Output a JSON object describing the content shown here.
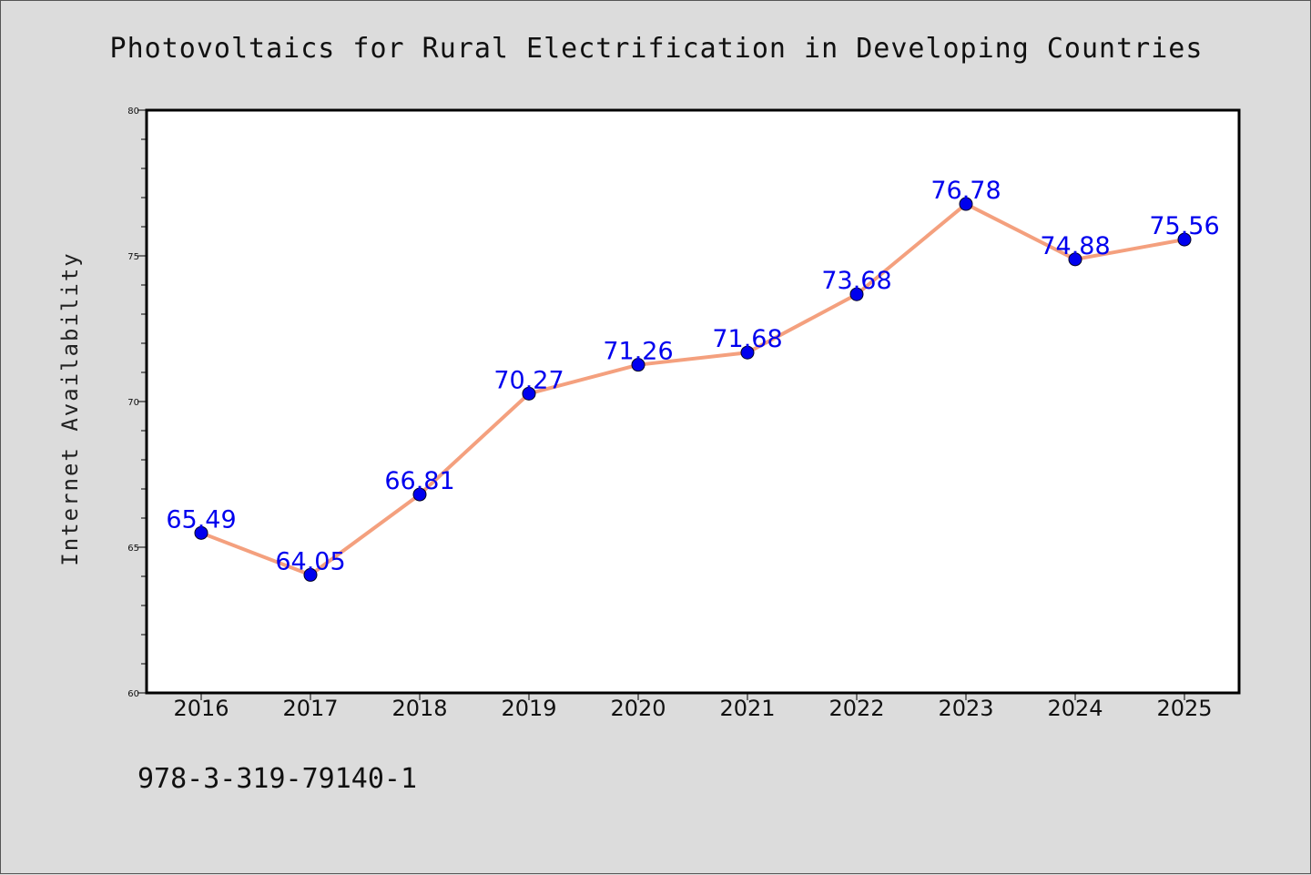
{
  "chart_data": {
    "type": "line",
    "title": "Photovoltaics for Rural Electrification in Developing Countries",
    "xlabel": "",
    "ylabel": "Internet Availability",
    "categories": [
      "2016",
      "2017",
      "2018",
      "2019",
      "2020",
      "2021",
      "2022",
      "2023",
      "2024",
      "2025"
    ],
    "series": [
      {
        "values": [
          65.49,
          64.05,
          66.81,
          70.27,
          71.26,
          71.68,
          73.68,
          76.78,
          74.88,
          75.56
        ],
        "labels": [
          "65.49",
          "64.05",
          "66.81",
          "70.27",
          "71.26",
          "71.68",
          "73.68",
          "76.78",
          "74.88",
          "75.56"
        ],
        "line_color": "#f4a07e",
        "marker_color": "#0000ee",
        "label_color": "#0000ee"
      }
    ],
    "ylim": [
      60,
      80
    ],
    "yticks": [
      "60",
      "65",
      "70",
      "75",
      "80"
    ],
    "ytick_values": [
      60,
      65,
      70,
      75,
      80
    ],
    "grid": false,
    "legend": "none"
  },
  "annotation": "978-3-319-79140-1",
  "colors": {
    "background": "#dcdcdc",
    "plot_background": "#ffffff"
  }
}
